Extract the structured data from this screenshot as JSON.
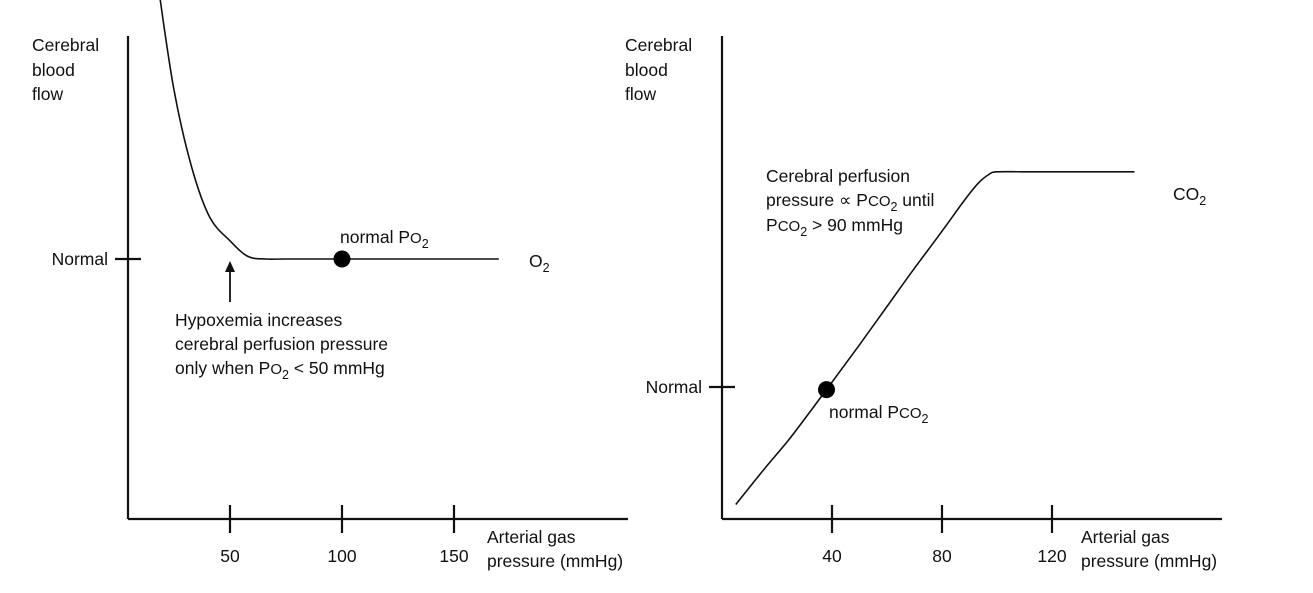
{
  "chart_data": [
    {
      "type": "line",
      "ylabel": [
        "Cerebral",
        "blood",
        "flow"
      ],
      "xlabel": [
        "Arterial gas",
        "pressure (mmHg)"
      ],
      "x_ticks": [
        50,
        100,
        150
      ],
      "y_ticks": [
        {
          "label": "Normal",
          "value": 1.0
        }
      ],
      "xlim": [
        0,
        220
      ],
      "ylim": [
        0,
        3.43
      ],
      "series": [
        {
          "name": "O₂",
          "x": [
            8,
            12,
            18,
            25,
            33,
            41,
            50,
            58,
            66,
            75,
            100,
            170
          ],
          "y": [
            2.79,
            2.45,
            2.05,
            1.65,
            1.35,
            1.16,
            1.07,
            1.01,
            1.0,
            1.0,
            1.0,
            1.0
          ]
        }
      ],
      "highlight_point": {
        "x": 100,
        "y": 1.0,
        "label_main": "normal P",
        "label_small": "O",
        "label_sub": "2"
      },
      "annotation": {
        "x": 50,
        "lines": [
          {
            "main": "Hypoxemia increases"
          },
          {
            "main": "cerebral perfusion pressure"
          },
          {
            "main": "only when P",
            "small": "O",
            "sub": "2",
            "tail": " < 50 mmHg"
          }
        ]
      },
      "grid": false
    },
    {
      "type": "line",
      "ylabel": [
        "Cerebral",
        "blood",
        "flow"
      ],
      "xlabel": [
        "Arterial gas",
        "pressure (mmHg)"
      ],
      "x_ticks": [
        40,
        80,
        120
      ],
      "y_ticks": [
        {
          "label": "Normal",
          "value": 1.0
        }
      ],
      "xlim": [
        0,
        185
      ],
      "ylim": [
        0,
        3.56
      ],
      "series": [
        {
          "name": "CO₂",
          "x": [
            5,
            15,
            25,
            38,
            50,
            60,
            70,
            80,
            88,
            93,
            97,
            100,
            110,
            125,
            150
          ],
          "y": [
            0.11,
            0.37,
            0.62,
            0.98,
            1.32,
            1.61,
            1.9,
            2.18,
            2.41,
            2.54,
            2.61,
            2.63,
            2.63,
            2.63,
            2.63
          ]
        }
      ],
      "highlight_point": {
        "x": 38,
        "y": 0.98,
        "label_main": "normal P",
        "label_small": "CO",
        "label_sub": "2"
      },
      "annotation": {
        "lines": [
          {
            "main": "Cerebral perfusion"
          },
          {
            "main": "pressure ∝ P",
            "small": "CO",
            "sub": "2",
            "tail": " until"
          },
          {
            "main": "P",
            "small": "CO",
            "sub": "2",
            "tail": " > 90 mmHg"
          }
        ]
      },
      "grid": false
    }
  ]
}
